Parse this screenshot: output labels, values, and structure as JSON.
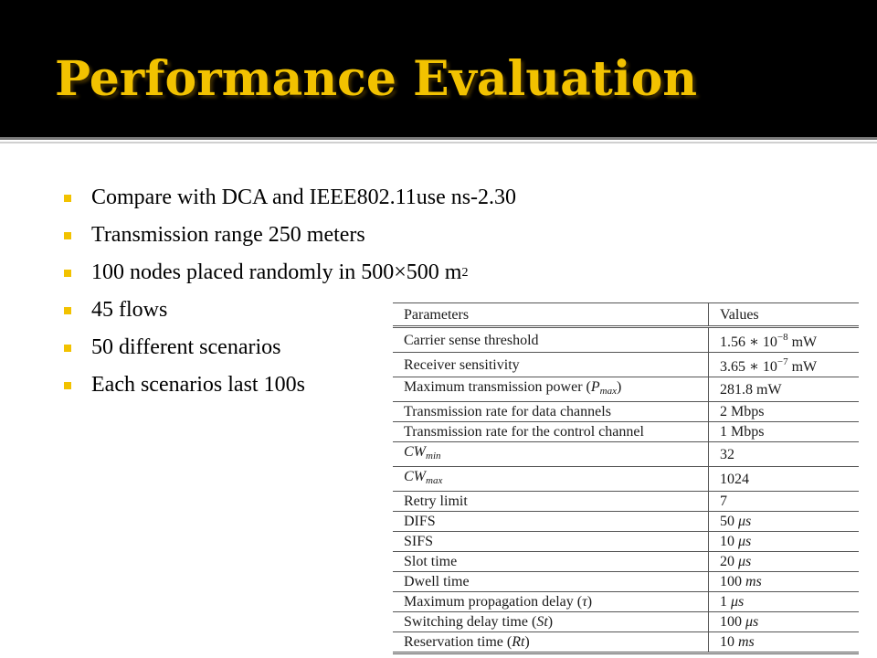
{
  "slide": {
    "title": "Performance Evaluation",
    "bullets": [
      "Compare with DCA and IEEE802.11use ns-2.30",
      "Transmission range 250 meters",
      "100 nodes placed randomly in 500×500 m",
      "45 flows",
      "50 different scenarios",
      "Each scenarios last 100s"
    ],
    "bullet_superscript": "2",
    "colors": {
      "title": "#f2c200",
      "bullet_marker": "#f2c200",
      "title_bar": "#000000"
    }
  },
  "table": {
    "header": {
      "param": "Parameters",
      "value": "Values"
    },
    "rows": [
      {
        "param": "Carrier sense threshold",
        "value_a": "1.56 ∗ 10",
        "value_sup": "−8",
        "value_b": " mW"
      },
      {
        "param": "Receiver sensitivity",
        "value_a": "3.65 ∗ 10",
        "value_sup": "−7",
        "value_b": " mW"
      },
      {
        "param_a": "Maximum transmission power (",
        "param_var": "P",
        "param_sub": "max",
        "param_b": ")",
        "value": "281.8 mW"
      },
      {
        "param": "Transmission rate for data channels",
        "value": "2 Mbps"
      },
      {
        "param": "Transmission rate for the control channel",
        "value": "1 Mbps"
      },
      {
        "param_var": "CW",
        "param_sub": "min",
        "value": "32"
      },
      {
        "param_var": "CW",
        "param_sub": "max",
        "value": "1024"
      },
      {
        "param": "Retry limit",
        "value": "7"
      },
      {
        "param": "DIFS",
        "value_a": "50 ",
        "value_unit": "μs"
      },
      {
        "param": "SIFS",
        "value_a": "10 ",
        "value_unit": "μs"
      },
      {
        "param": "Slot time",
        "value_a": "20 ",
        "value_unit": "μs"
      },
      {
        "param": "Dwell time",
        "value_a": "100 ",
        "value_unit": "ms"
      },
      {
        "param_a": "Maximum propagation delay (",
        "param_var": "τ",
        "param_b": ")",
        "value_a": "1 ",
        "value_unit": "μs"
      },
      {
        "param_a": "Switching delay time (",
        "param_var": "St",
        "param_b": ")",
        "value_a": "100 ",
        "value_unit": "μs"
      },
      {
        "param_a": "Reservation time (",
        "param_var": "Rt",
        "param_b": ")",
        "value_a": "10 ",
        "value_unit": "ms"
      }
    ]
  }
}
